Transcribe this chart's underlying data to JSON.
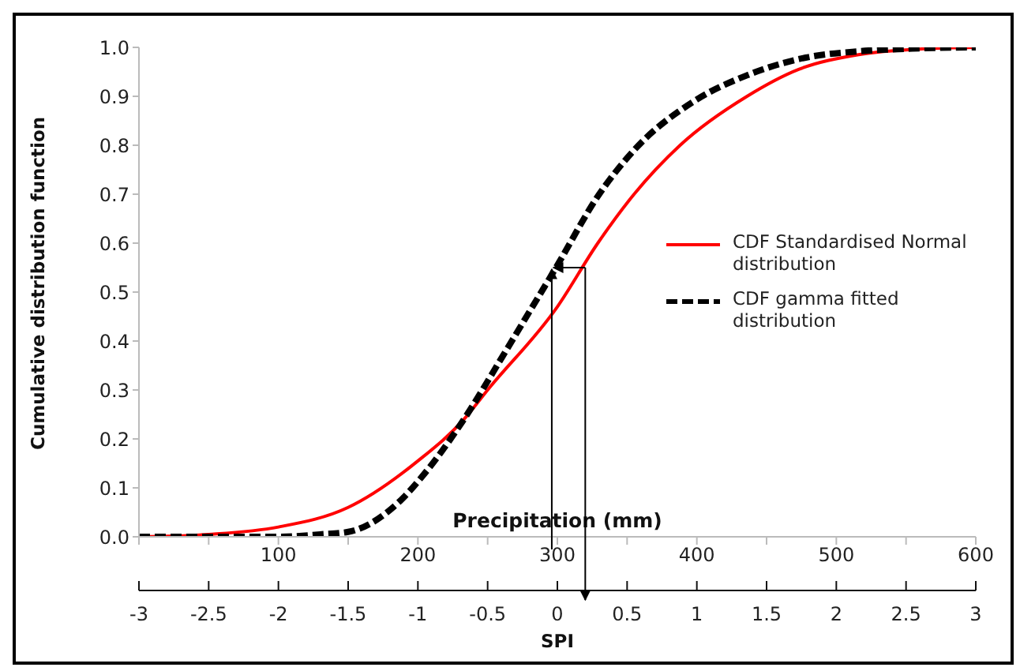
{
  "chart_data": {
    "type": "line",
    "xlabel": "Precipitation (mm)",
    "ylabel": "Cumulative distribution function",
    "x2label": "SPI",
    "xlim": [
      0,
      600
    ],
    "xticks": [
      {
        "value": 0,
        "label": null
      },
      {
        "value": 50,
        "label": null
      },
      100,
      {
        "value": 150,
        "label": null
      },
      200,
      {
        "value": 250,
        "label": null
      },
      300,
      {
        "value": 350,
        "label": null
      },
      400,
      {
        "value": 450,
        "label": null
      },
      500,
      {
        "value": 550,
        "label": null
      },
      600
    ],
    "x2lim": [
      -3,
      3
    ],
    "x2ticks": [
      -3,
      -2.5,
      -2,
      -1.5,
      -1,
      -0.5,
      0,
      0.5,
      1,
      1.5,
      2,
      2.5,
      3
    ],
    "ylim": [
      0,
      1
    ],
    "yticks": [
      {
        "value": 0,
        "label": "0.0"
      },
      0.1,
      0.2,
      0.3,
      0.4,
      0.5,
      0.6,
      0.7,
      0.8,
      0.9,
      {
        "value": 1,
        "label": "1.0"
      }
    ],
    "grid": false,
    "legend": "right",
    "marker": "none",
    "series": [
      {
        "name": "CDF Standardised Normal distribution",
        "color": "#ff0000",
        "line_style": "solid",
        "x": [
          0,
          50,
          100,
          150,
          200,
          233,
          250,
          300,
          329,
          355,
          388,
          436,
          473,
          516,
          563,
          600
        ],
        "values": [
          0,
          0.005,
          0.02,
          0.06,
          0.155,
          0.24,
          0.3,
          0.47,
          0.6,
          0.7,
          0.8,
          0.9,
          0.955,
          0.985,
          0.997,
          1.0
        ]
      },
      {
        "name": "CDF gamma fitted distribution",
        "color": "#000000",
        "line_style": "dashed",
        "x": [
          0,
          100,
          130,
          150,
          186,
          205,
          233,
          261,
          280,
          299,
          330,
          355,
          398,
          436,
          478,
          516,
          560,
          600
        ],
        "values": [
          0,
          0,
          0.005,
          0.01,
          0.07,
          0.13,
          0.24,
          0.37,
          0.46,
          0.55,
          0.7,
          0.79,
          0.89,
          0.943,
          0.979,
          0.992,
          0.998,
          1.0
        ]
      }
    ]
  }
}
